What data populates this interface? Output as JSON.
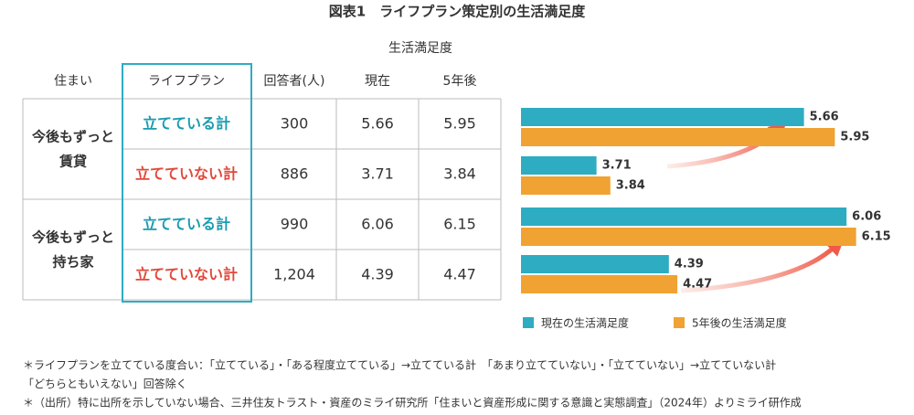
{
  "title": "図表1　ライフプラン策定別の生活満足度",
  "table": {
    "group_header": "生活満足度",
    "columns": [
      "住まい",
      "ライフプラン",
      "回答者(人)",
      "現在",
      "5年後"
    ],
    "groups": [
      {
        "label": [
          "今後もずっと",
          "賃貸"
        ],
        "rows": [
          {
            "cells": [
              "立てている計",
              "300",
              "5.66",
              "5.95"
            ],
            "color": "#1a9bb0"
          },
          {
            "cells": [
              "立てていない計",
              "886",
              "3.71",
              "3.84"
            ],
            "color": "#e2483a"
          }
        ]
      },
      {
        "label": [
          "今後もずっと",
          "持ち家"
        ],
        "rows": [
          {
            "cells": [
              "立てている計",
              "990",
              "6.06",
              "6.15"
            ],
            "color": "#1a9bb0"
          },
          {
            "cells": [
              "立てていない計",
              "1,204",
              "4.39",
              "4.47"
            ],
            "color": "#e2483a"
          }
        ]
      }
    ]
  },
  "chart_data": {
    "type": "bar",
    "orientation": "horizontal",
    "xlim": [
      3,
      6.5
    ],
    "series": [
      {
        "name": "現在の生活満足度",
        "color": "#2eacc1",
        "values": [
          5.66,
          3.71,
          6.06,
          4.39
        ]
      },
      {
        "name": "5年後の生活満足度",
        "color": "#f0a232",
        "values": [
          5.95,
          3.84,
          6.15,
          4.47
        ]
      }
    ]
  },
  "notes": [
    "＊ライフプランを立てている度合い：「立てている」・「ある程度立てている」→立てている計　「あまり立てていない」・「立てていない」→立てていない計",
    "「どちらともいえない」回答除く",
    "＊（出所）特に出所を示していない場合、三井住友トラスト・資産のミライ研究所「住まいと資産形成に関する意識と実態調査」（2024年）よりミライ研作成"
  ]
}
